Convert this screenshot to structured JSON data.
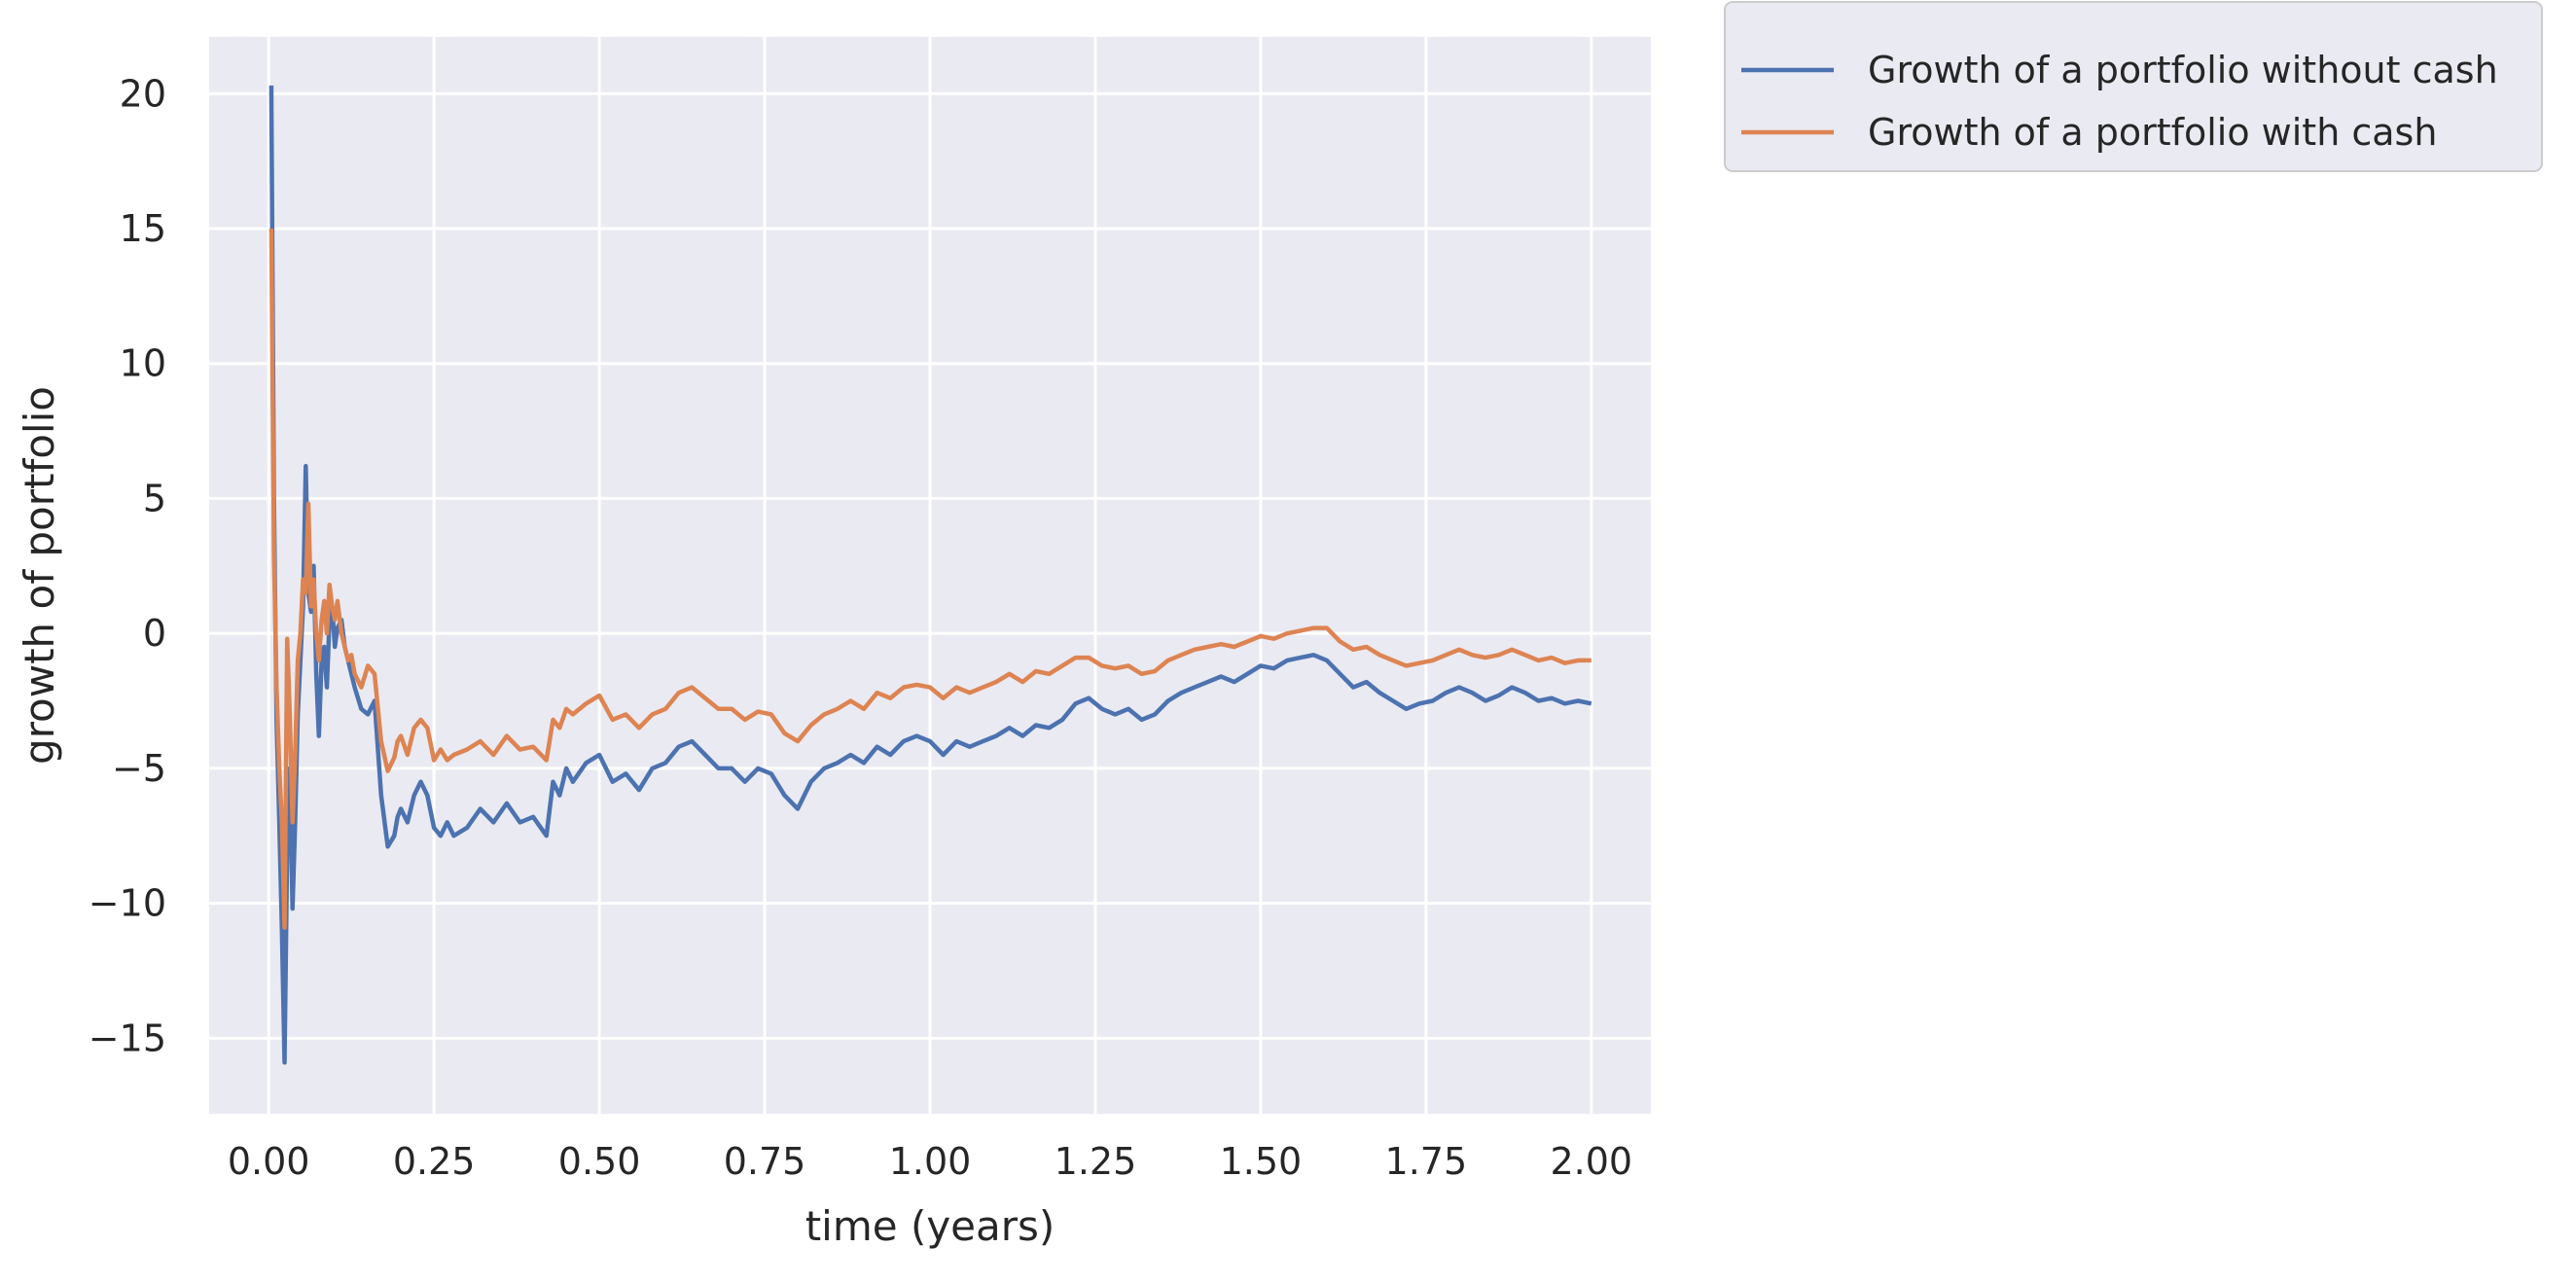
{
  "chart_data": {
    "type": "line",
    "title": "",
    "xlabel": "time (years)",
    "ylabel": "growth of portfolio",
    "xlim": [
      -0.09,
      2.09
    ],
    "ylim": [
      -17.8,
      22.1
    ],
    "xticks": [
      0.0,
      0.25,
      0.5,
      0.75,
      1.0,
      1.25,
      1.5,
      1.75,
      2.0
    ],
    "xtick_labels": [
      "0.00",
      "0.25",
      "0.50",
      "0.75",
      "1.00",
      "1.25",
      "1.50",
      "1.75",
      "2.00"
    ],
    "yticks": [
      -15,
      -10,
      -5,
      0,
      5,
      10,
      15,
      20
    ],
    "ytick_labels": [
      "−15",
      "−10",
      "−5",
      "0",
      "5",
      "10",
      "15",
      "20"
    ],
    "grid": true,
    "legend_position": "outside top-right",
    "background": "#eaeaf2",
    "grid_color": "#ffffff",
    "series": [
      {
        "name": "Growth of a portfolio without cash",
        "color": "#4c72b0",
        "x": [
          0.004,
          0.008,
          0.012,
          0.016,
          0.02,
          0.024,
          0.028,
          0.032,
          0.036,
          0.04,
          0.044,
          0.048,
          0.052,
          0.056,
          0.06,
          0.064,
          0.068,
          0.072,
          0.076,
          0.08,
          0.084,
          0.088,
          0.092,
          0.096,
          0.1,
          0.104,
          0.11,
          0.115,
          0.12,
          0.125,
          0.13,
          0.14,
          0.15,
          0.16,
          0.17,
          0.18,
          0.19,
          0.195,
          0.2,
          0.21,
          0.22,
          0.23,
          0.24,
          0.25,
          0.26,
          0.27,
          0.28,
          0.3,
          0.32,
          0.34,
          0.36,
          0.38,
          0.4,
          0.42,
          0.43,
          0.44,
          0.45,
          0.46,
          0.48,
          0.5,
          0.52,
          0.54,
          0.56,
          0.58,
          0.6,
          0.62,
          0.64,
          0.66,
          0.68,
          0.7,
          0.72,
          0.74,
          0.76,
          0.78,
          0.8,
          0.82,
          0.84,
          0.86,
          0.88,
          0.9,
          0.92,
          0.94,
          0.96,
          0.98,
          1.0,
          1.02,
          1.04,
          1.06,
          1.08,
          1.1,
          1.12,
          1.14,
          1.16,
          1.18,
          1.2,
          1.22,
          1.24,
          1.26,
          1.28,
          1.3,
          1.32,
          1.34,
          1.36,
          1.38,
          1.4,
          1.42,
          1.44,
          1.46,
          1.48,
          1.5,
          1.52,
          1.54,
          1.56,
          1.58,
          1.6,
          1.62,
          1.64,
          1.66,
          1.68,
          1.7,
          1.72,
          1.74,
          1.76,
          1.78,
          1.8,
          1.82,
          1.84,
          1.86,
          1.88,
          1.9,
          1.92,
          1.94,
          1.96,
          1.98,
          2.0
        ],
        "values": [
          20.3,
          5.0,
          -3.2,
          -7.0,
          -11.0,
          -15.9,
          -8.0,
          -5.0,
          -10.2,
          -7.0,
          -3.0,
          -1.0,
          1.0,
          6.2,
          1.5,
          0.8,
          2.5,
          -1.5,
          -3.8,
          -1.0,
          -0.5,
          -2.0,
          0.5,
          1.0,
          -0.5,
          0.2,
          0.5,
          -0.5,
          -1.0,
          -1.5,
          -2.0,
          -2.8,
          -3.0,
          -2.5,
          -6.0,
          -7.9,
          -7.5,
          -6.8,
          -6.5,
          -7.0,
          -6.0,
          -5.5,
          -6.0,
          -7.2,
          -7.5,
          -7.0,
          -7.5,
          -7.2,
          -6.5,
          -7.0,
          -6.3,
          -7.0,
          -6.8,
          -7.5,
          -5.5,
          -6.0,
          -5.0,
          -5.5,
          -4.8,
          -4.5,
          -5.5,
          -5.2,
          -5.8,
          -5.0,
          -4.8,
          -4.2,
          -4.0,
          -4.5,
          -5.0,
          -5.0,
          -5.5,
          -5.0,
          -5.2,
          -6.0,
          -6.5,
          -5.5,
          -5.0,
          -4.8,
          -4.5,
          -4.8,
          -4.2,
          -4.5,
          -4.0,
          -3.8,
          -4.0,
          -4.5,
          -4.0,
          -4.2,
          -4.0,
          -3.8,
          -3.5,
          -3.8,
          -3.4,
          -3.5,
          -3.2,
          -2.6,
          -2.4,
          -2.8,
          -3.0,
          -2.8,
          -3.2,
          -3.0,
          -2.5,
          -2.2,
          -2.0,
          -1.8,
          -1.6,
          -1.8,
          -1.5,
          -1.2,
          -1.3,
          -1.0,
          -0.9,
          -0.8,
          -1.0,
          -1.5,
          -2.0,
          -1.8,
          -2.2,
          -2.5,
          -2.8,
          -2.6,
          -2.5,
          -2.2,
          -2.0,
          -2.2,
          -2.5,
          -2.3,
          -2.0,
          -2.2,
          -2.5,
          -2.4,
          -2.6,
          -2.5,
          -2.6
        ]
      },
      {
        "name": "Growth of a portfolio with cash",
        "color": "#dd8452",
        "x": [
          0.004,
          0.008,
          0.012,
          0.016,
          0.02,
          0.024,
          0.028,
          0.032,
          0.036,
          0.04,
          0.044,
          0.048,
          0.052,
          0.056,
          0.06,
          0.064,
          0.068,
          0.072,
          0.076,
          0.08,
          0.084,
          0.088,
          0.092,
          0.096,
          0.1,
          0.104,
          0.11,
          0.115,
          0.12,
          0.125,
          0.13,
          0.14,
          0.15,
          0.16,
          0.17,
          0.18,
          0.19,
          0.195,
          0.2,
          0.21,
          0.22,
          0.23,
          0.24,
          0.25,
          0.26,
          0.27,
          0.28,
          0.3,
          0.32,
          0.34,
          0.36,
          0.38,
          0.4,
          0.42,
          0.43,
          0.44,
          0.45,
          0.46,
          0.48,
          0.5,
          0.52,
          0.54,
          0.56,
          0.58,
          0.6,
          0.62,
          0.64,
          0.66,
          0.68,
          0.7,
          0.72,
          0.74,
          0.76,
          0.78,
          0.8,
          0.82,
          0.84,
          0.86,
          0.88,
          0.9,
          0.92,
          0.94,
          0.96,
          0.98,
          1.0,
          1.02,
          1.04,
          1.06,
          1.08,
          1.1,
          1.12,
          1.14,
          1.16,
          1.18,
          1.2,
          1.22,
          1.24,
          1.26,
          1.28,
          1.3,
          1.32,
          1.34,
          1.36,
          1.38,
          1.4,
          1.42,
          1.44,
          1.46,
          1.48,
          1.5,
          1.52,
          1.54,
          1.56,
          1.58,
          1.6,
          1.62,
          1.64,
          1.66,
          1.68,
          1.7,
          1.72,
          1.74,
          1.76,
          1.78,
          1.8,
          1.82,
          1.84,
          1.86,
          1.88,
          1.9,
          1.92,
          1.94,
          1.96,
          1.98,
          2.0
        ],
        "values": [
          15.0,
          3.0,
          -2.0,
          -5.0,
          -7.0,
          -10.9,
          -0.2,
          -3.0,
          -7.0,
          -4.5,
          -1.0,
          0.0,
          2.0,
          1.5,
          4.8,
          1.0,
          2.0,
          0.0,
          -1.0,
          0.5,
          1.2,
          0.0,
          1.8,
          1.0,
          0.5,
          1.2,
          0.0,
          -0.5,
          -1.0,
          -0.8,
          -1.5,
          -2.0,
          -1.2,
          -1.5,
          -4.0,
          -5.1,
          -4.6,
          -4.0,
          -3.8,
          -4.5,
          -3.5,
          -3.2,
          -3.5,
          -4.7,
          -4.3,
          -4.7,
          -4.5,
          -4.3,
          -4.0,
          -4.5,
          -3.8,
          -4.3,
          -4.2,
          -4.7,
          -3.2,
          -3.5,
          -2.8,
          -3.0,
          -2.6,
          -2.3,
          -3.2,
          -3.0,
          -3.5,
          -3.0,
          -2.8,
          -2.2,
          -2.0,
          -2.4,
          -2.8,
          -2.8,
          -3.2,
          -2.9,
          -3.0,
          -3.7,
          -4.0,
          -3.4,
          -3.0,
          -2.8,
          -2.5,
          -2.8,
          -2.2,
          -2.4,
          -2.0,
          -1.9,
          -2.0,
          -2.4,
          -2.0,
          -2.2,
          -2.0,
          -1.8,
          -1.5,
          -1.8,
          -1.4,
          -1.5,
          -1.2,
          -0.9,
          -0.9,
          -1.2,
          -1.3,
          -1.2,
          -1.5,
          -1.4,
          -1.0,
          -0.8,
          -0.6,
          -0.5,
          -0.4,
          -0.5,
          -0.3,
          -0.1,
          -0.2,
          0.0,
          0.1,
          0.2,
          0.2,
          -0.3,
          -0.6,
          -0.5,
          -0.8,
          -1.0,
          -1.2,
          -1.1,
          -1.0,
          -0.8,
          -0.6,
          -0.8,
          -0.9,
          -0.8,
          -0.6,
          -0.8,
          -1.0,
          -0.9,
          -1.1,
          -1.0,
          -1.0
        ]
      }
    ]
  }
}
